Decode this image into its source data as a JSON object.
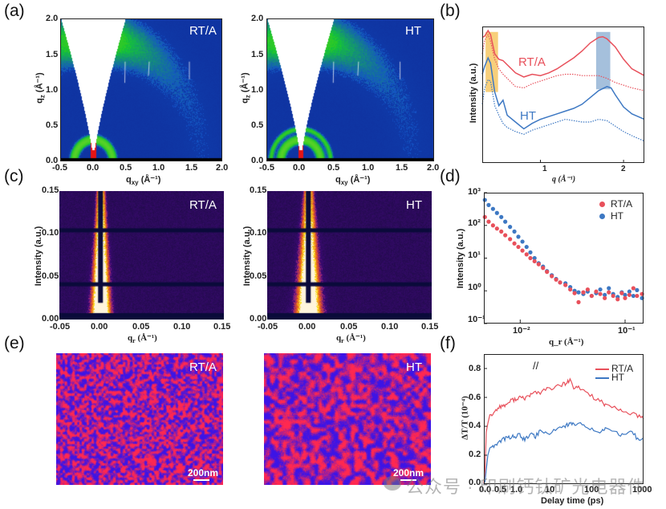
{
  "figure": {
    "panel_labels": {
      "a": "(a)",
      "b": "(b)",
      "c": "(c)",
      "d": "(d)",
      "e": "(e)",
      "f": "(f)"
    },
    "samples": {
      "rta": "RT/A",
      "ht": "HT"
    },
    "colors": {
      "rta": "#e8505b",
      "ht": "#3d78c3",
      "highlight_low_q": "#f5c35a",
      "highlight_high_q": "#8fb0d3"
    }
  },
  "panel_a": {
    "type": "2D GIWAXS map",
    "xlabel": "q_xy (Å⁻¹)",
    "xlabel_main": "q",
    "xlabel_sub": "xy",
    "xlabel_unit": " (Å⁻¹)",
    "ylabel": "q_z (Å⁻¹)",
    "ylabel_main": "q",
    "ylabel_sub": "z",
    "ylabel_unit": " (Å⁻¹)",
    "xticks": [
      "-0.5",
      "0.0",
      "0.5",
      "1.0",
      "1.5",
      "2.0"
    ],
    "yticks": [
      "0.0",
      "0.5",
      "1.0",
      "1.5",
      "2.0"
    ],
    "xlim": [
      -0.5,
      2.0
    ],
    "ylim": [
      0.0,
      2.0
    ]
  },
  "panel_c": {
    "type": "2D GISAXS map",
    "xlabel": "q_r (Å⁻¹)",
    "xlabel_main": "q",
    "xlabel_sub": "r",
    "xlabel_unit": " (Å⁻¹)",
    "ylabel": "Intensity (a.u.)",
    "xticks": [
      "-0.05",
      "0.00",
      "0.05",
      "0.10",
      "0.15"
    ],
    "yticks": [
      "0.00",
      "0.05",
      "0.10",
      "0.15"
    ],
    "xlim": [
      -0.05,
      0.15
    ],
    "ylim": [
      0.0,
      0.15
    ]
  },
  "panel_e": {
    "type": "morphology images",
    "scalebar": "200nm"
  },
  "watermark": "公众号 · 印刷钙钛矿光电器件",
  "chart_data": [
    {
      "id": "b",
      "type": "line",
      "title": "",
      "xlabel": "q (Å⁻¹)",
      "ylabel": "Intensity (a.u.)",
      "xlim": [
        0.3,
        2.25
      ],
      "xticks": [
        "1",
        "2"
      ],
      "xtick_values": [
        1,
        2
      ],
      "ylim": [
        0,
        10
      ],
      "annotations": [
        "RT/A",
        "HT"
      ],
      "highlight_bands": [
        {
          "x": [
            0.34,
            0.49
          ],
          "y": [
            5.2,
            9.6
          ],
          "color": "orange"
        },
        {
          "x": [
            1.67,
            1.84
          ],
          "y": [
            5.4,
            9.6
          ],
          "color": "blue"
        }
      ],
      "series": [
        {
          "name": "RT/A solid",
          "style": "solid",
          "color": "#e8505b",
          "x": [
            0.3,
            0.33,
            0.37,
            0.4,
            0.45,
            0.5,
            0.55,
            0.6,
            0.7,
            0.8,
            0.9,
            1.0,
            1.1,
            1.2,
            1.3,
            1.4,
            1.5,
            1.6,
            1.7,
            1.75,
            1.8,
            1.9,
            2.0,
            2.1,
            2.25
          ],
          "y": [
            9.2,
            9.3,
            9.7,
            9.4,
            8.0,
            7.6,
            7.5,
            7.2,
            6.6,
            6.3,
            6.5,
            6.4,
            6.6,
            6.9,
            7.3,
            7.7,
            8.2,
            8.8,
            9.2,
            9.25,
            9.1,
            8.5,
            7.6,
            6.9,
            6.4
          ]
        },
        {
          "name": "RT/A dotted",
          "style": "dotted",
          "color": "#e8505b",
          "x": [
            0.3,
            0.33,
            0.37,
            0.4,
            0.45,
            0.5,
            0.55,
            0.6,
            0.7,
            0.8,
            0.9,
            1.0,
            1.1,
            1.2,
            1.3,
            1.4,
            1.5,
            1.6,
            1.7,
            1.8,
            1.9,
            2.0,
            2.1,
            2.25
          ],
          "y": [
            8.0,
            9.0,
            9.4,
            8.9,
            7.6,
            6.9,
            6.5,
            6.2,
            5.6,
            5.5,
            5.8,
            6.0,
            6.2,
            6.4,
            6.5,
            6.5,
            6.4,
            6.4,
            6.4,
            6.2,
            5.9,
            5.7,
            5.5,
            5.3
          ]
        },
        {
          "name": "HT solid",
          "style": "solid",
          "color": "#3d78c3",
          "x": [
            0.3,
            0.33,
            0.37,
            0.4,
            0.45,
            0.5,
            0.55,
            0.6,
            0.7,
            0.8,
            0.9,
            1.0,
            1.1,
            1.2,
            1.3,
            1.4,
            1.5,
            1.6,
            1.7,
            1.8,
            1.85,
            1.9,
            2.0,
            2.1,
            2.25
          ],
          "y": [
            6.5,
            7.1,
            7.7,
            7.3,
            5.2,
            4.2,
            4.6,
            3.5,
            3.0,
            2.5,
            2.9,
            3.2,
            3.4,
            3.6,
            3.8,
            4.0,
            4.3,
            4.8,
            5.3,
            5.6,
            5.5,
            5.0,
            4.1,
            3.6,
            3.2
          ]
        },
        {
          "name": "HT dotted",
          "style": "dotted",
          "color": "#3d78c3",
          "x": [
            0.3,
            0.33,
            0.37,
            0.4,
            0.45,
            0.5,
            0.55,
            0.6,
            0.7,
            0.8,
            0.9,
            1.0,
            1.1,
            1.2,
            1.3,
            1.4,
            1.5,
            1.6,
            1.7,
            1.8,
            1.9,
            2.0,
            2.1,
            2.25
          ],
          "y": [
            4.3,
            5.5,
            6.1,
            6.0,
            4.2,
            3.5,
            2.9,
            2.6,
            2.3,
            2.1,
            2.4,
            2.6,
            2.8,
            3.0,
            3.2,
            3.1,
            3.0,
            3.0,
            3.2,
            3.1,
            2.7,
            2.3,
            2.0,
            1.6
          ]
        }
      ]
    },
    {
      "id": "d",
      "type": "scatter",
      "title": "",
      "xlabel": "q_r (Å⁻¹)",
      "ylabel": "Intensity (a.u.)",
      "xscale": "log",
      "yscale": "log",
      "xlim": [
        0.0045,
        0.15
      ],
      "ylim": [
        0.1,
        1000
      ],
      "xticks": [
        "10⁻²",
        "10⁻¹"
      ],
      "xtick_values": [
        0.01,
        0.1
      ],
      "yticks": [
        "10⁻¹",
        "10⁰",
        "10¹",
        "10²",
        "10³"
      ],
      "ytick_values": [
        0.1,
        1,
        10,
        100,
        1000
      ],
      "legend": [
        "RT/A",
        "HT"
      ],
      "legend_position": "top-right",
      "series": [
        {
          "name": "RT/A",
          "color": "#e8505b",
          "x": [
            0.0046,
            0.005,
            0.0055,
            0.006,
            0.0066,
            0.0072,
            0.008,
            0.0088,
            0.0096,
            0.0105,
            0.0115,
            0.0125,
            0.0137,
            0.015,
            0.0165,
            0.018,
            0.02,
            0.022,
            0.024,
            0.027,
            0.03,
            0.033,
            0.036,
            0.04,
            0.044,
            0.048,
            0.053,
            0.058,
            0.064,
            0.07,
            0.077,
            0.085,
            0.093,
            0.1,
            0.11,
            0.12,
            0.13,
            0.145
          ],
          "y": [
            180,
            130,
            100,
            80,
            65,
            50,
            38,
            28,
            22,
            17,
            13,
            10,
            8,
            6.5,
            5,
            3.8,
            2.8,
            2.2,
            1.8,
            1.5,
            1.1,
            0.85,
            0.45,
            0.9,
            1.1,
            0.7,
            0.95,
            0.8,
            0.6,
            0.9,
            0.7,
            0.55,
            0.85,
            0.6,
            0.75,
            1.2,
            0.7,
            0.8
          ]
        },
        {
          "name": "HT",
          "color": "#3d78c3",
          "x": [
            0.0046,
            0.005,
            0.0055,
            0.006,
            0.0066,
            0.0072,
            0.008,
            0.0088,
            0.0096,
            0.0105,
            0.0115,
            0.0125,
            0.0137,
            0.015,
            0.0165,
            0.018,
            0.02,
            0.022,
            0.024,
            0.027,
            0.03,
            0.033,
            0.036,
            0.04,
            0.044,
            0.048,
            0.053,
            0.058,
            0.064,
            0.07,
            0.077,
            0.085,
            0.093,
            0.1,
            0.11,
            0.12,
            0.13,
            0.145
          ],
          "y": [
            600,
            420,
            320,
            240,
            180,
            130,
            90,
            65,
            45,
            32,
            22,
            15,
            10,
            7,
            5.5,
            4,
            3,
            2.3,
            1.8,
            1.7,
            1.3,
            1.0,
            0.9,
            0.8,
            0.95,
            0.7,
            0.85,
            1.1,
            0.75,
            1.2,
            0.8,
            0.65,
            0.9,
            0.75,
            0.95,
            0.7,
            1.05,
            0.6
          ]
        }
      ]
    },
    {
      "id": "f",
      "type": "line",
      "title": "",
      "xlabel": "Delay time (ps)",
      "ylabel": "ΔT/T (10⁻⁴)",
      "xaxis_note": "linear 0–1.2 ps, broken (//), then log to 1000 ps",
      "xticks": [
        "0.0",
        "0.5",
        "1.0",
        "10",
        "100",
        "1000"
      ],
      "ylim": [
        0.0,
        0.9
      ],
      "yticks": [
        "0.0",
        "0.2",
        "0.4",
        "0.6",
        "0.8"
      ],
      "legend": [
        "RT/A",
        "HT"
      ],
      "legend_position": "top-right",
      "series": [
        {
          "name": "RT/A",
          "color": "#e8505b",
          "x": [
            0.0,
            0.03,
            0.06,
            0.1,
            0.15,
            0.2,
            0.3,
            0.4,
            0.5,
            0.6,
            0.7,
            0.8,
            0.9,
            1.0,
            1.1,
            1.2,
            1.5,
            2,
            3,
            5,
            8,
            10,
            12,
            15,
            20,
            30,
            50,
            80,
            100,
            200,
            300,
            500,
            700,
            1000
          ],
          "y": [
            0.0,
            0.1,
            0.36,
            0.42,
            0.48,
            0.48,
            0.51,
            0.54,
            0.54,
            0.56,
            0.58,
            0.59,
            0.6,
            0.59,
            0.61,
            0.62,
            0.64,
            0.63,
            0.66,
            0.67,
            0.69,
            0.7,
            0.72,
            0.66,
            0.67,
            0.64,
            0.6,
            0.57,
            0.54,
            0.52,
            0.5,
            0.49,
            0.47,
            0.45
          ]
        },
        {
          "name": "HT",
          "color": "#3d78c3",
          "x": [
            0.0,
            0.03,
            0.06,
            0.1,
            0.15,
            0.2,
            0.3,
            0.4,
            0.5,
            0.6,
            0.7,
            0.8,
            0.9,
            1.0,
            1.1,
            1.2,
            1.5,
            2,
            3,
            5,
            8,
            10,
            12,
            15,
            20,
            30,
            50,
            80,
            100,
            200,
            300,
            500,
            700,
            1000
          ],
          "y": [
            0.0,
            0.02,
            0.1,
            0.2,
            0.25,
            0.26,
            0.27,
            0.3,
            0.31,
            0.32,
            0.33,
            0.33,
            0.34,
            0.31,
            0.32,
            0.35,
            0.33,
            0.37,
            0.35,
            0.38,
            0.4,
            0.41,
            0.42,
            0.41,
            0.42,
            0.4,
            0.38,
            0.36,
            0.39,
            0.35,
            0.33,
            0.36,
            0.31,
            0.32
          ]
        }
      ]
    }
  ]
}
